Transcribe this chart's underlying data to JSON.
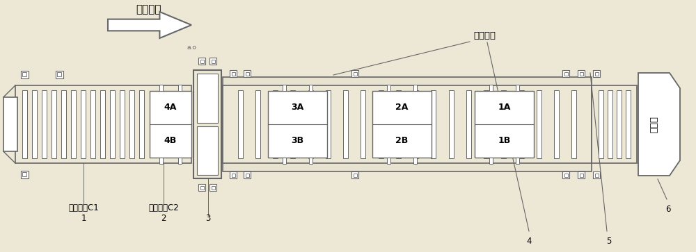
{
  "bg_color": "#ede8d5",
  "line_color": "#666666",
  "box_color": "#ffffff",
  "title_arrow_text": "物流方向",
  "label_c1": "上料辊道C1",
  "label_c2": "上料辊道C2",
  "label_furnace": "炉内辊道",
  "label_quench": "淬火机",
  "box_labels_4": [
    "4A",
    "4B"
  ],
  "box_labels_3": [
    "3A",
    "3B"
  ],
  "box_labels_2": [
    "2A",
    "2B"
  ],
  "box_labels_1": [
    "1A",
    "1B"
  ],
  "font_size_label": 8.5,
  "font_size_box": 9,
  "font_size_title": 11,
  "font_size_num": 8.5
}
